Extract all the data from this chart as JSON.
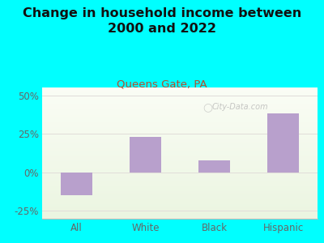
{
  "title": "Change in household income between\n2000 and 2022",
  "subtitle": "Queens Gate, PA",
  "categories": [
    "All",
    "White",
    "Black",
    "Hispanic"
  ],
  "values": [
    -15,
    23,
    8,
    38
  ],
  "bar_color": "#b8a0cc",
  "background_color": "#00FFFF",
  "title_fontsize": 11.5,
  "subtitle_fontsize": 9.5,
  "subtitle_color": "#b05030",
  "ylim": [
    -30,
    55
  ],
  "yticks": [
    -25,
    0,
    25,
    50
  ],
  "ytick_labels": [
    "-25%",
    "0%",
    "25%",
    "50%"
  ],
  "watermark": "City-Data.com",
  "grid_color": "#e0ddd8",
  "axis_label_color": "#666666",
  "title_color": "#111111"
}
